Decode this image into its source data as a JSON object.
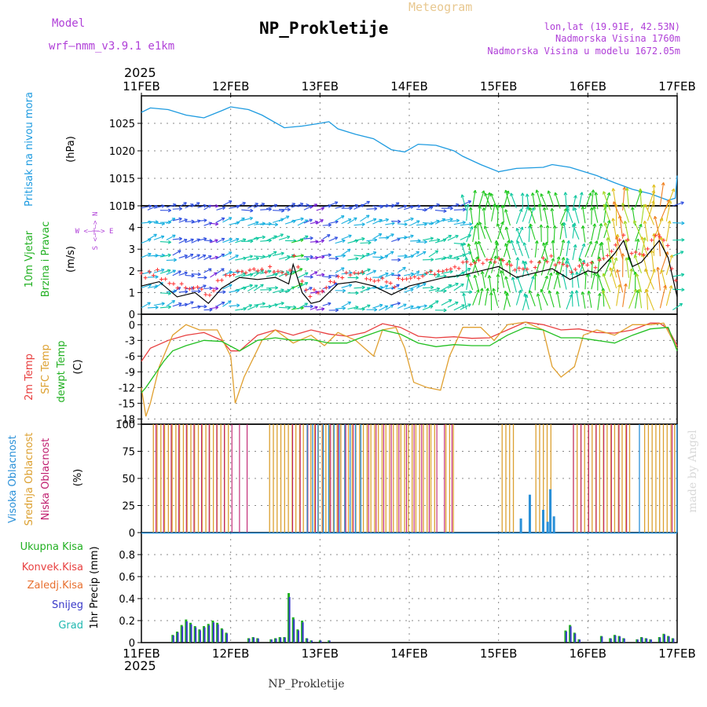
{
  "header": {
    "model_label": "Model",
    "model_name": "wrf—nmm_v3.9.1  e1km",
    "title": "NP_Prokletije",
    "subtitle": "Meteogram",
    "coords": "lon,lat (19.91E, 42.53N)",
    "altitude": "Nadmorska Visina 1760m",
    "model_altitude": "Nadmorska Visina u modelu 1672.05m",
    "footer": "NP_Prokletije",
    "credit": "made by Angel"
  },
  "colors": {
    "pressure": "#1e9be0",
    "temp": "#e84040",
    "sfc_temp": "#e0a030",
    "dewpt": "#22c022",
    "high_cloud": "#2a90d8",
    "mid_cloud": "#dca030",
    "low_cloud": "#c02070",
    "precip_total": "#22b022",
    "precip_snow": "#3838c8",
    "model_label": "#b040d8"
  },
  "chart_data": {
    "type": "meteogram",
    "year": "2025",
    "x_ticks": [
      "11FEB",
      "12FEB",
      "13FEB",
      "14FEB",
      "15FEB",
      "16FEB",
      "17FEB"
    ],
    "panels": {
      "pressure": {
        "label": "Pritisak na nivou mora",
        "unit": "(hPa)",
        "ylim": [
          1010,
          1030
        ],
        "yticks": [
          "1010",
          "1015",
          "1020",
          "1025"
        ],
        "points": [
          [
            0,
            1027
          ],
          [
            0.1,
            1027.8
          ],
          [
            0.3,
            1027.5
          ],
          [
            0.5,
            1026.5
          ],
          [
            0.7,
            1026
          ],
          [
            0.9,
            1027.3
          ],
          [
            1.0,
            1028
          ],
          [
            1.2,
            1027.5
          ],
          [
            1.35,
            1026.5
          ],
          [
            1.6,
            1024.2
          ],
          [
            1.8,
            1024.5
          ],
          [
            2.0,
            1025
          ],
          [
            2.1,
            1025.3
          ],
          [
            2.2,
            1024
          ],
          [
            2.4,
            1023
          ],
          [
            2.6,
            1022.2
          ],
          [
            2.8,
            1020.2
          ],
          [
            2.95,
            1019.8
          ],
          [
            3.1,
            1021.2
          ],
          [
            3.3,
            1021
          ],
          [
            3.5,
            1020
          ],
          [
            3.6,
            1019
          ],
          [
            3.8,
            1017.5
          ],
          [
            4.0,
            1016.2
          ],
          [
            4.2,
            1016.8
          ],
          [
            4.5,
            1017
          ],
          [
            4.6,
            1017.5
          ],
          [
            4.8,
            1017
          ],
          [
            5.0,
            1016
          ],
          [
            5.1,
            1015.5
          ],
          [
            5.3,
            1014.2
          ],
          [
            5.5,
            1013
          ],
          [
            5.7,
            1012.2
          ],
          [
            5.9,
            1011
          ],
          [
            5.98,
            1011.4
          ],
          [
            6.0,
            1015.5
          ]
        ]
      },
      "wind": {
        "label1": "10m Vjetar",
        "label2": "Brzina i Pravac",
        "unit": "(m/s)",
        "compass": "W <—|—> E",
        "compass_v": "S <—|—> N",
        "ylim": [
          0,
          5
        ],
        "yticks": [
          "0",
          "1",
          "2",
          "3",
          "4",
          "5"
        ],
        "speed": [
          [
            0,
            1.3
          ],
          [
            0.2,
            1.5
          ],
          [
            0.4,
            0.8
          ],
          [
            0.6,
            1.0
          ],
          [
            0.75,
            0.5
          ],
          [
            0.9,
            1.2
          ],
          [
            1.1,
            1.7
          ],
          [
            1.3,
            1.6
          ],
          [
            1.5,
            1.7
          ],
          [
            1.65,
            1.4
          ],
          [
            1.7,
            2.3
          ],
          [
            1.8,
            1.0
          ],
          [
            1.9,
            0.5
          ],
          [
            2.0,
            0.6
          ],
          [
            2.2,
            1.4
          ],
          [
            2.4,
            1.5
          ],
          [
            2.6,
            1.3
          ],
          [
            2.8,
            0.9
          ],
          [
            3.0,
            1.3
          ],
          [
            3.2,
            1.5
          ],
          [
            3.4,
            1.7
          ],
          [
            3.6,
            1.8
          ],
          [
            3.8,
            2.0
          ],
          [
            4.0,
            2.2
          ],
          [
            4.2,
            1.7
          ],
          [
            4.4,
            1.9
          ],
          [
            4.6,
            2.1
          ],
          [
            4.8,
            1.6
          ],
          [
            5.0,
            2.0
          ],
          [
            5.1,
            1.9
          ],
          [
            5.3,
            2.8
          ],
          [
            5.4,
            3.4
          ],
          [
            5.5,
            2.2
          ],
          [
            5.6,
            2.4
          ],
          [
            5.7,
            2.9
          ],
          [
            5.8,
            3.4
          ],
          [
            5.9,
            2.6
          ],
          [
            6.0,
            0.8
          ]
        ],
        "arrow_rows": [
          4.9,
          4.2,
          3.4,
          2.6,
          1.8,
          1.1,
          0.3
        ]
      },
      "temperature": {
        "label1": "2m Temp",
        "label2": "SFC Temp",
        "label3": "dewpt Temp",
        "unit": "(C)",
        "ylim": [
          -19,
          2
        ],
        "yticks": [
          "0",
          "-3",
          "-6",
          "-9",
          "-12",
          "-15",
          "-18"
        ],
        "temp_2m": [
          [
            0,
            -7
          ],
          [
            0.1,
            -4.5
          ],
          [
            0.3,
            -3
          ],
          [
            0.5,
            -2
          ],
          [
            0.7,
            -1.5
          ],
          [
            0.9,
            -3
          ],
          [
            1.0,
            -5
          ],
          [
            1.1,
            -5
          ],
          [
            1.3,
            -2
          ],
          [
            1.5,
            -1
          ],
          [
            1.7,
            -2
          ],
          [
            1.9,
            -1
          ],
          [
            2.1,
            -1.8
          ],
          [
            2.3,
            -2.2
          ],
          [
            2.5,
            -1.5
          ],
          [
            2.7,
            0.2
          ],
          [
            2.9,
            -0.5
          ],
          [
            3.1,
            -2.2
          ],
          [
            3.3,
            -2.5
          ],
          [
            3.5,
            -2.3
          ],
          [
            3.7,
            -2.6
          ],
          [
            3.9,
            -2.5
          ],
          [
            4.1,
            -1
          ],
          [
            4.3,
            0.5
          ],
          [
            4.5,
            0
          ],
          [
            4.7,
            -1
          ],
          [
            4.9,
            -0.8
          ],
          [
            5.1,
            -1.5
          ],
          [
            5.3,
            -1.6
          ],
          [
            5.5,
            -1
          ],
          [
            5.7,
            0.3
          ],
          [
            5.8,
            0.3
          ],
          [
            5.9,
            -0.8
          ],
          [
            6.0,
            -4
          ]
        ],
        "sfc_temp": [
          [
            0,
            -12
          ],
          [
            0.05,
            -17.5
          ],
          [
            0.1,
            -15
          ],
          [
            0.2,
            -8
          ],
          [
            0.35,
            -2
          ],
          [
            0.5,
            0
          ],
          [
            0.65,
            -1
          ],
          [
            0.85,
            -1
          ],
          [
            1.0,
            -6
          ],
          [
            1.05,
            -15
          ],
          [
            1.15,
            -10
          ],
          [
            1.35,
            -3
          ],
          [
            1.5,
            -1
          ],
          [
            1.7,
            -3.5
          ],
          [
            1.9,
            -2
          ],
          [
            2.05,
            -4
          ],
          [
            2.2,
            -1.5
          ],
          [
            2.4,
            -3
          ],
          [
            2.6,
            -6
          ],
          [
            2.7,
            -1
          ],
          [
            2.85,
            -0.5
          ],
          [
            2.95,
            -4.5
          ],
          [
            3.05,
            -11
          ],
          [
            3.2,
            -12
          ],
          [
            3.35,
            -12.5
          ],
          [
            3.45,
            -6
          ],
          [
            3.6,
            -0.5
          ],
          [
            3.8,
            -0.5
          ],
          [
            3.95,
            -3
          ],
          [
            4.1,
            0
          ],
          [
            4.3,
            0.5
          ],
          [
            4.5,
            -1
          ],
          [
            4.6,
            -8
          ],
          [
            4.7,
            -10
          ],
          [
            4.85,
            -8
          ],
          [
            4.95,
            -2
          ],
          [
            5.1,
            -1
          ],
          [
            5.3,
            -2
          ],
          [
            5.5,
            0
          ],
          [
            5.7,
            0
          ],
          [
            5.85,
            0.3
          ],
          [
            6.0,
            -4.5
          ]
        ],
        "dewpt": [
          [
            0,
            -13
          ],
          [
            0.05,
            -12
          ],
          [
            0.15,
            -9.5
          ],
          [
            0.25,
            -7
          ],
          [
            0.35,
            -5
          ],
          [
            0.5,
            -4
          ],
          [
            0.7,
            -3
          ],
          [
            0.9,
            -3.2
          ],
          [
            1.1,
            -5
          ],
          [
            1.3,
            -3
          ],
          [
            1.5,
            -2.5
          ],
          [
            1.7,
            -3
          ],
          [
            1.9,
            -2.8
          ],
          [
            2.1,
            -3.5
          ],
          [
            2.3,
            -3.5
          ],
          [
            2.5,
            -2.2
          ],
          [
            2.7,
            -1
          ],
          [
            2.9,
            -1.8
          ],
          [
            3.1,
            -3.5
          ],
          [
            3.3,
            -4.2
          ],
          [
            3.5,
            -3.8
          ],
          [
            3.7,
            -4
          ],
          [
            3.9,
            -4
          ],
          [
            4.1,
            -2
          ],
          [
            4.3,
            -0.5
          ],
          [
            4.5,
            -1
          ],
          [
            4.7,
            -2.5
          ],
          [
            4.9,
            -2.5
          ],
          [
            5.1,
            -3
          ],
          [
            5.3,
            -3.5
          ],
          [
            5.5,
            -2
          ],
          [
            5.7,
            -0.8
          ],
          [
            5.9,
            -0.5
          ],
          [
            6.0,
            -5
          ]
        ]
      },
      "clouds": {
        "label1": "Visoka Oblacnost",
        "label2": "Srednja Oblacnost",
        "label3": "Niska Oblacnost",
        "unit": "(%)",
        "ylim": [
          0,
          100
        ],
        "yticks": [
          "0",
          "25",
          "50",
          "75",
          "100"
        ],
        "mid_windows": [
          [
            0.1,
            1.0
          ],
          [
            1.4,
            3.3
          ],
          [
            3.4,
            3.5
          ],
          [
            4.0,
            4.2
          ],
          [
            4.4,
            4.6
          ],
          [
            4.8,
            5.5
          ],
          [
            5.6,
            6.0
          ]
        ],
        "low_windows": [
          [
            0.1,
            1.2
          ],
          [
            1.6,
            3.5
          ],
          [
            4.8,
            5.5
          ],
          [
            5.9,
            6.0
          ]
        ],
        "high_windows": [
          [
            1.8,
            2.5
          ],
          [
            5.5,
            5.6
          ],
          [
            5.95,
            6.0
          ]
        ],
        "high_spikes": [
          [
            4.35,
            35
          ],
          [
            4.25,
            13
          ],
          [
            4.5,
            21
          ],
          [
            4.58,
            40
          ],
          [
            4.62,
            15
          ],
          [
            4.55,
            10
          ]
        ]
      },
      "precip": {
        "label_total": "Ukupna Kisa",
        "label_conv": "Konvek.Kisa",
        "label_frozen": "Zaledj.Kisa",
        "label_snow": "Snijeg",
        "label_hail": "Grad",
        "unit": "1hr Precip (mm)",
        "ylim": [
          0,
          1
        ],
        "yticks": [
          "0",
          "0.2",
          "0.4",
          "0.6",
          "0.8"
        ],
        "bars": [
          [
            0.35,
            0.07
          ],
          [
            0.4,
            0.1
          ],
          [
            0.45,
            0.16
          ],
          [
            0.5,
            0.21
          ],
          [
            0.55,
            0.18
          ],
          [
            0.6,
            0.15
          ],
          [
            0.65,
            0.12
          ],
          [
            0.7,
            0.15
          ],
          [
            0.75,
            0.17
          ],
          [
            0.8,
            0.2
          ],
          [
            0.85,
            0.18
          ],
          [
            0.9,
            0.13
          ],
          [
            0.95,
            0.09
          ],
          [
            1.2,
            0.04
          ],
          [
            1.25,
            0.05
          ],
          [
            1.3,
            0.04
          ],
          [
            1.45,
            0.03
          ],
          [
            1.5,
            0.04
          ],
          [
            1.55,
            0.05
          ],
          [
            1.6,
            0.05
          ],
          [
            1.65,
            0.45
          ],
          [
            1.7,
            0.23
          ],
          [
            1.75,
            0.12
          ],
          [
            1.8,
            0.2
          ],
          [
            1.85,
            0.04
          ],
          [
            1.9,
            0.02
          ],
          [
            2.0,
            0.02
          ],
          [
            2.1,
            0.02
          ],
          [
            4.75,
            0.11
          ],
          [
            4.8,
            0.16
          ],
          [
            4.85,
            0.09
          ],
          [
            4.9,
            0.03
          ],
          [
            5.8,
            0.05
          ],
          [
            5.85,
            0.08
          ],
          [
            5.9,
            0.06
          ],
          [
            5.95,
            0.04
          ],
          [
            5.55,
            0.03
          ],
          [
            5.6,
            0.05
          ],
          [
            5.65,
            0.04
          ],
          [
            5.7,
            0.03
          ],
          [
            5.15,
            0.06
          ],
          [
            5.25,
            0.04
          ],
          [
            5.3,
            0.07
          ],
          [
            5.35,
            0.06
          ],
          [
            5.4,
            0.04
          ]
        ]
      }
    }
  }
}
